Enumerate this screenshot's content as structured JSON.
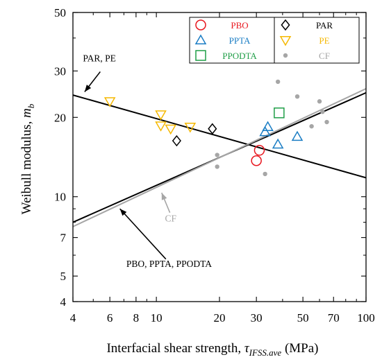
{
  "chart_data": {
    "type": "scatter",
    "xlabel": {
      "prefix": "Interfacial shear strength, ",
      "symbol": "τ",
      "subscript": "IFSS.ave",
      "suffix": " (MPa)"
    },
    "ylabel": {
      "prefix": "Weibull modulus, ",
      "symbol": "m",
      "subscript": "b"
    },
    "xscale": "log",
    "yscale": "log",
    "xlim": [
      4,
      100
    ],
    "ylim": [
      4,
      50
    ],
    "grid": false,
    "legend_position": "top-right",
    "x_ticks": [
      4,
      6,
      8,
      10,
      20,
      30,
      50,
      70,
      100
    ],
    "x_minor_ticks": [
      5,
      7,
      9,
      40,
      60,
      80,
      90
    ],
    "y_ticks": [
      4,
      5,
      7,
      10,
      20,
      30,
      50
    ],
    "y_minor_ticks": [
      6,
      8,
      9,
      40
    ],
    "colors": {
      "PBO": "#e8161e",
      "PPTA": "#1a7dc4",
      "PPODTA": "#1f9e47",
      "PAR": "#000000",
      "PE": "#f5b800",
      "CF": "#a6a6a6"
    },
    "series": [
      {
        "name": "PBO",
        "marker": "circle",
        "color": "#e8161e",
        "points": [
          [
            30,
            13.7
          ],
          [
            31,
            15.0
          ]
        ]
      },
      {
        "name": "PAR",
        "marker": "diamond",
        "color": "#000000",
        "points": [
          [
            12.5,
            16.3
          ],
          [
            18.5,
            18.1
          ]
        ]
      },
      {
        "name": "PPTA",
        "marker": "triangle-up",
        "color": "#1a7dc4",
        "points": [
          [
            33,
            17.6
          ],
          [
            34,
            18.4
          ],
          [
            38,
            15.8
          ],
          [
            47,
            16.9
          ]
        ]
      },
      {
        "name": "PE",
        "marker": "triangle-down",
        "color": "#f5b800",
        "points": [
          [
            6,
            23.0
          ],
          [
            10.5,
            20.5
          ],
          [
            10.5,
            18.6
          ],
          [
            11.7,
            18.1
          ],
          [
            14.5,
            18.4
          ]
        ]
      },
      {
        "name": "PPODTA",
        "marker": "square",
        "color": "#1f9e47",
        "points": [
          [
            38.5,
            20.8
          ]
        ]
      },
      {
        "name": "CF",
        "marker": "dot",
        "color": "#a6a6a6",
        "points": [
          [
            19.5,
            14.4
          ],
          [
            19.5,
            13.0
          ],
          [
            33,
            12.2
          ],
          [
            38,
            27.3
          ],
          [
            47,
            24.0
          ],
          [
            55,
            18.5
          ],
          [
            60,
            23.0
          ],
          [
            62,
            21.0
          ],
          [
            65,
            19.2
          ]
        ]
      }
    ],
    "fit_lines": [
      {
        "label_ref": "PAR, PE",
        "color": "#000000",
        "from": [
          4,
          24.3
        ],
        "to": [
          100,
          11.8
        ]
      },
      {
        "label_ref": "PBO, PPTA, PPODTA",
        "color": "#000000",
        "from": [
          4,
          8.0
        ],
        "to": [
          100,
          24.8
        ]
      },
      {
        "label_ref": "CF",
        "color": "#a6a6a6",
        "from": [
          4,
          7.7
        ],
        "to": [
          100,
          25.7
        ]
      }
    ],
    "annotations": [
      {
        "text": "PAR, PE",
        "color": "#000000",
        "text_at": [
          5.35,
          32.6
        ],
        "arrow_from": [
          5.4,
          29.8
        ],
        "arrow_to": [
          4.55,
          25.0
        ]
      },
      {
        "text": "CF",
        "color": "#a6a6a6",
        "text_at": [
          11.7,
          8.05
        ],
        "arrow_from": [
          11.6,
          8.7
        ],
        "arrow_to": [
          10.6,
          10.35
        ]
      },
      {
        "text": "PBO, PPTA, PPODTA",
        "color": "#000000",
        "text_at": [
          11.5,
          5.42
        ],
        "arrow_from": [
          11.1,
          5.8
        ],
        "arrow_to": [
          6.7,
          9.0
        ]
      }
    ],
    "legend": [
      {
        "label": "PBO",
        "marker": "circle",
        "color": "#e8161e"
      },
      {
        "label": "PAR",
        "marker": "diamond",
        "color": "#000000"
      },
      {
        "label": "PPTA",
        "marker": "triangle-up",
        "color": "#1a7dc4"
      },
      {
        "label": "PE",
        "marker": "triangle-down",
        "color": "#f5b800"
      },
      {
        "label": "PPODTA",
        "marker": "square",
        "color": "#1f9e47"
      },
      {
        "label": "CF",
        "marker": "dot",
        "color": "#a6a6a6"
      }
    ]
  }
}
